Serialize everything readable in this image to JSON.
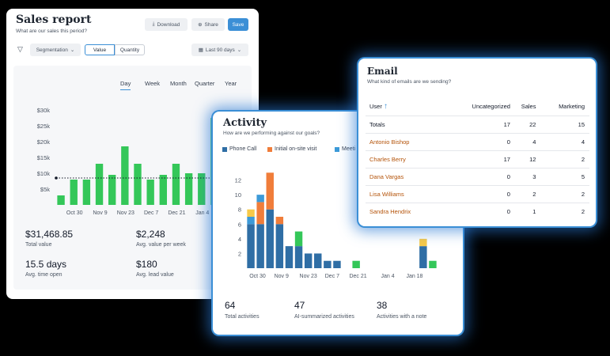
{
  "sales": {
    "title": "Sales report",
    "subtitle": "What are our sales this period?",
    "download": "Download",
    "share": "Share",
    "save": "Save",
    "segmentation": "Segmentation",
    "value_toggle": "Value",
    "quantity_toggle": "Quantity",
    "range": "Last 90 days",
    "tabs": [
      "Day",
      "Week",
      "Month",
      "Quarter",
      "Year"
    ],
    "active_tab": "Day",
    "metrics": [
      {
        "value": "$31,468.85",
        "label": "Total value"
      },
      {
        "value": "$2,248",
        "label": "Avg. value per week"
      },
      {
        "value": "15.5 days",
        "label": "Avg. time open"
      },
      {
        "value": "$180",
        "label": "Avg. lead value"
      }
    ]
  },
  "activity": {
    "title": "Activity",
    "subtitle": "How are we performing against our goals?",
    "legend": [
      {
        "name": "Phone Call",
        "color": "#2f6ea5"
      },
      {
        "name": "Initial on-site visit",
        "color": "#f07d3a"
      },
      {
        "name": "Meeti",
        "color": "#3c9ad8"
      }
    ],
    "metrics": [
      {
        "value": "64",
        "label": "Total activities"
      },
      {
        "value": "47",
        "label": "AI-summarized activities"
      },
      {
        "value": "38",
        "label": "Activities with a note"
      }
    ]
  },
  "email": {
    "title": "Email",
    "subtitle": "What kind of emails are we sending?",
    "columns": [
      "User",
      "Uncategorized",
      "Sales",
      "Marketing"
    ],
    "rows": [
      {
        "user": "Totals",
        "uncategorized": "17",
        "sales": "22",
        "marketing": "15"
      },
      {
        "user": "Antonio Bishop",
        "uncategorized": "0",
        "sales": "4",
        "marketing": "4"
      },
      {
        "user": "Charles Berry",
        "uncategorized": "17",
        "sales": "12",
        "marketing": "2"
      },
      {
        "user": "Dana Vargas",
        "uncategorized": "0",
        "sales": "3",
        "marketing": "5"
      },
      {
        "user": "Lisa Williams",
        "uncategorized": "0",
        "sales": "2",
        "marketing": "2"
      },
      {
        "user": "Sandra Hendrix",
        "uncategorized": "0",
        "sales": "1",
        "marketing": "2"
      }
    ]
  },
  "chart_data": [
    {
      "type": "bar",
      "ylim": [
        0,
        30000
      ],
      "yticks": [
        "$5k",
        "$10k",
        "$15k",
        "$20k",
        "$25k",
        "$30k"
      ],
      "ytick_values": [
        5000,
        10000,
        15000,
        20000,
        25000,
        30000
      ],
      "xticks": [
        "Oct 30",
        "Nov 9",
        "Nov 23",
        "Dec 7",
        "Dec 21",
        "Jan 4"
      ],
      "values": [
        3000,
        8000,
        8000,
        13000,
        9500,
        18500,
        13000,
        8000,
        9500,
        13000,
        10000,
        10000,
        27500
      ],
      "reference_line": 8500,
      "color": "#34c759"
    },
    {
      "type": "bar",
      "stacked": true,
      "ylim": [
        0,
        14
      ],
      "yticks": [
        "2",
        "4",
        "6",
        "8",
        "10",
        "12"
      ],
      "ytick_values": [
        2,
        4,
        6,
        8,
        10,
        12
      ],
      "xticks": [
        "Oct 30",
        "Nov 9",
        "Nov 23",
        "Dec 7",
        "Dec 21",
        "Jan 4",
        "Jan 18"
      ],
      "series": [
        {
          "name": "Phone Call",
          "color": "#2f6ea5",
          "values": [
            6,
            6,
            8,
            6,
            3,
            3,
            2,
            2,
            1,
            1,
            0,
            0,
            0,
            0,
            0,
            0,
            0,
            0,
            3,
            0
          ]
        },
        {
          "name": "Initial on-site visit",
          "color": "#f07d3a",
          "values": [
            0,
            3,
            5,
            1,
            0,
            0,
            0,
            0,
            0,
            0,
            0,
            0,
            0,
            0,
            0,
            0,
            0,
            0,
            0,
            0
          ]
        },
        {
          "color": "#3c9ad8",
          "values": [
            1,
            1,
            0,
            0,
            0,
            0,
            0,
            0,
            0,
            0,
            0,
            0,
            0,
            0,
            0,
            0,
            0,
            0,
            0,
            0
          ]
        },
        {
          "color": "#34c759",
          "values": [
            0,
            0,
            0,
            0,
            0,
            2,
            0,
            0,
            0,
            0,
            0,
            1,
            0,
            0,
            0,
            0,
            0,
            0,
            0,
            1
          ]
        },
        {
          "color": "#f7c948",
          "values": [
            1,
            0,
            0,
            0,
            0,
            0,
            0,
            0,
            0,
            0,
            0,
            0,
            0,
            0,
            0,
            0,
            0,
            0,
            1,
            0
          ]
        }
      ]
    }
  ]
}
